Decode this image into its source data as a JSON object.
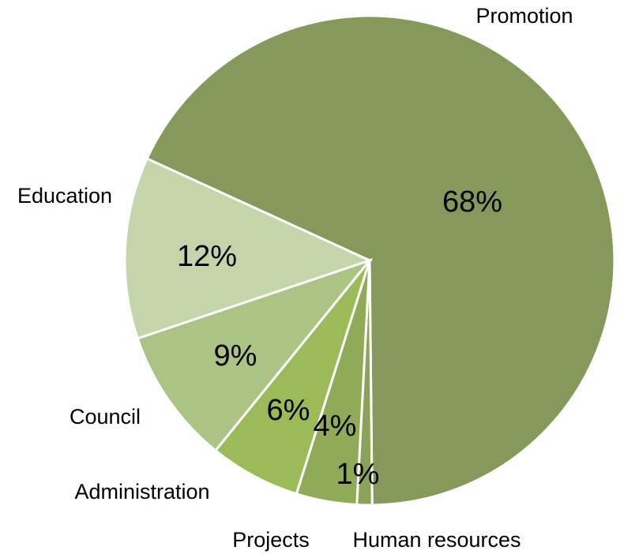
{
  "chart_data": {
    "type": "pie",
    "categories": [
      "Promotion",
      "Human resources",
      "Projects",
      "Administration",
      "Council",
      "Education"
    ],
    "values": [
      68,
      1,
      4,
      6,
      9,
      12
    ],
    "value_labels": [
      "68%",
      "1%",
      "4%",
      "6%",
      "9%",
      "12%"
    ],
    "colors": [
      "#85995a",
      "#8ba356",
      "#8fab58",
      "#9bbb59",
      "#abc483",
      "#c4d5aa"
    ]
  }
}
